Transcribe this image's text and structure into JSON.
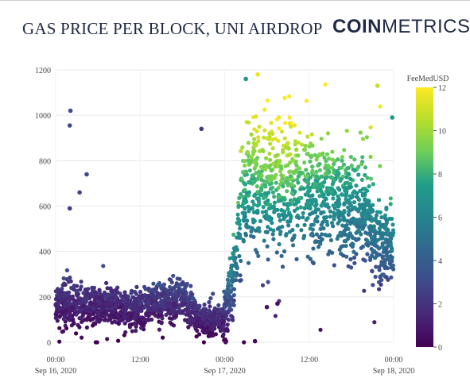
{
  "header": {
    "title": "GAS PRICE PER BLOCK, UNI AIRDROP",
    "brand_bold": "COIN",
    "brand_light": "METRICS"
  },
  "chart_data": {
    "type": "scatter",
    "title": "GAS PRICE PER BLOCK, UNI AIRDROP",
    "xlabel": "",
    "ylabel": "",
    "x_ticks": [
      {
        "hour": 0,
        "label": "00:00",
        "sublabel": "Sep 16, 2020"
      },
      {
        "hour": 12,
        "label": "12:00",
        "sublabel": ""
      },
      {
        "hour": 24,
        "label": "00:00",
        "sublabel": "Sep 17, 2020"
      },
      {
        "hour": 36,
        "label": "12:00",
        "sublabel": ""
      },
      {
        "hour": 48,
        "label": "00:00",
        "sublabel": "Sep 18, 2020"
      }
    ],
    "xlim_hours": [
      0,
      48
    ],
    "ylim": [
      0,
      1200
    ],
    "y_ticks": [
      0,
      200,
      400,
      600,
      800,
      1000,
      1200
    ],
    "grid": true,
    "colorbar": {
      "title": "FeeMedUSD",
      "min": 0,
      "max": 12,
      "ticks": [
        0,
        2,
        4,
        6,
        8,
        10,
        12
      ],
      "colorscale": [
        "#440154",
        "#482777",
        "#3f4a8a",
        "#31678e",
        "#26838f",
        "#1f9d8a",
        "#6cce5a",
        "#b6de2b",
        "#fee825"
      ]
    },
    "baseline_profile": {
      "hours": [
        0,
        3,
        6,
        8,
        9,
        12,
        15,
        18,
        20,
        21,
        23.8,
        24.2,
        25,
        26,
        27,
        28,
        30,
        33,
        36,
        39,
        42,
        44,
        45,
        46,
        47,
        48
      ],
      "median_gwei": [
        170,
        165,
        160,
        160,
        140,
        150,
        175,
        195,
        110,
        95,
        95,
        130,
        240,
        480,
        660,
        690,
        700,
        690,
        660,
        630,
        610,
        580,
        480,
        420,
        440,
        440
      ],
      "spread_gwei": [
        45,
        45,
        40,
        40,
        35,
        40,
        40,
        45,
        35,
        30,
        30,
        70,
        80,
        130,
        130,
        140,
        150,
        140,
        130,
        120,
        115,
        110,
        100,
        90,
        85,
        85
      ],
      "median_fee_usd": [
        1.5,
        1.5,
        1.4,
        1.4,
        1.3,
        1.6,
        1.9,
        2.3,
        1.6,
        1.4,
        1.4,
        2.5,
        4.5,
        6.5,
        7.5,
        8.0,
        8.5,
        8.5,
        7.5,
        7.0,
        6.5,
        6.2,
        5.5,
        4.8,
        5.2,
        5.6
      ]
    },
    "notable_points": [
      {
        "hour": 2.1,
        "gwei": 1020,
        "fee": 3.2
      },
      {
        "hour": 2.0,
        "gwei": 955,
        "fee": 3.0
      },
      {
        "hour": 2.0,
        "gwei": 590,
        "fee": 2.5
      },
      {
        "hour": 3.4,
        "gwei": 660,
        "fee": 2.8
      },
      {
        "hour": 4.4,
        "gwei": 740,
        "fee": 2.9
      },
      {
        "hour": 20.7,
        "gwei": 940,
        "fee": 2.1
      },
      {
        "hour": 27.0,
        "gwei": 1160,
        "fee": 7.0
      },
      {
        "hour": 28.7,
        "gwei": 1180,
        "fee": 11.6
      },
      {
        "hour": 45.7,
        "gwei": 1130,
        "fee": 10.8
      },
      {
        "hour": 47.8,
        "gwei": 990,
        "fee": 7.2
      },
      {
        "hour": 28.3,
        "gwei": 5,
        "fee": 0.3
      },
      {
        "hour": 31.5,
        "gwei": 170,
        "fee": 0.4
      },
      {
        "hour": 30.0,
        "gwei": 155,
        "fee": 0.6
      }
    ]
  }
}
